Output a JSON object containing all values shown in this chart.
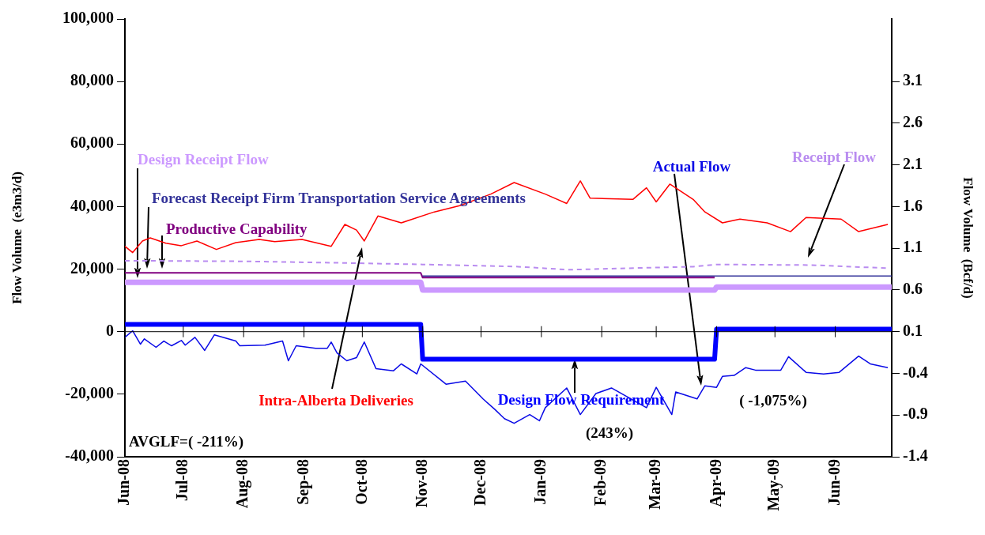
{
  "chart_data": {
    "type": "line",
    "xlabel": null,
    "ylabel": "Flow Volume  (e3m3/d)",
    "y2label": "Flow Volume  (Bcf/d)",
    "xlim": [
      "2008-06-01",
      "2009-06-30"
    ],
    "xticks": [
      {
        "value": "2008-06-01",
        "label": "Jun-08"
      },
      {
        "value": "2008-07-01",
        "label": "Jul-08"
      },
      {
        "value": "2008-08-01",
        "label": "Aug-08"
      },
      {
        "value": "2008-09-01",
        "label": "Sep-08"
      },
      {
        "value": "2008-10-01",
        "label": "Oct-08"
      },
      {
        "value": "2008-11-01",
        "label": "Nov-08"
      },
      {
        "value": "2008-12-01",
        "label": "Dec-08"
      },
      {
        "value": "2009-01-01",
        "label": "Jan-09"
      },
      {
        "value": "2009-02-01",
        "label": "Feb-09"
      },
      {
        "value": "2009-03-01",
        "label": "Mar-09"
      },
      {
        "value": "2009-04-01",
        "label": "Apr-09"
      },
      {
        "value": "2009-05-01",
        "label": "May-09"
      },
      {
        "value": "2009-06-01",
        "label": "Jun-09"
      }
    ],
    "ylim": [
      -40000,
      100000
    ],
    "yticks": [
      {
        "value": -40000,
        "label": "-40,000"
      },
      {
        "value": -20000,
        "label": "-20,000"
      },
      0,
      {
        "value": 20000,
        "label": "20,000"
      },
      {
        "value": 40000,
        "label": "40,000"
      },
      {
        "value": 60000,
        "label": "60,000"
      },
      {
        "value": 80000,
        "label": "80,000"
      },
      {
        "value": 100000,
        "label": "100,000"
      }
    ],
    "y2lim": [
      -1.4,
      3.85
    ],
    "y2ticks": [
      -1.4,
      -0.9,
      -0.4,
      0.1,
      0.6,
      1.1,
      1.6,
      2.1,
      2.6,
      3.1
    ],
    "grid": false,
    "legend": false,
    "marker": "none",
    "ref_lines": [
      {
        "axis": "y",
        "value": 0,
        "color": "#000000"
      }
    ],
    "annotations": [
      "AVGLF=( -211%)",
      "(243%)",
      "( -1,075%)"
    ],
    "series": [
      {
        "name": "Intra-Alberta Deliveries",
        "color": "#ff0000",
        "x": [
          "2008-06-01",
          "2008-06-05",
          "2008-06-10",
          "2008-06-14",
          "2008-06-22",
          "2008-06-30",
          "2008-07-08",
          "2008-07-18",
          "2008-07-28",
          "2008-08-09",
          "2008-08-17",
          "2008-08-31",
          "2008-09-15",
          "2008-09-22",
          "2008-09-28",
          "2008-10-02",
          "2008-10-09",
          "2008-10-21",
          "2008-11-07",
          "2008-11-20",
          "2008-12-06",
          "2008-12-18",
          "2009-01-03",
          "2009-01-14",
          "2009-01-21",
          "2009-01-26",
          "2009-02-17",
          "2009-02-24",
          "2009-03-01",
          "2009-03-08",
          "2009-03-20",
          "2009-03-26",
          "2009-04-04",
          "2009-04-13",
          "2009-04-27",
          "2009-05-09",
          "2009-05-17",
          "2009-06-04",
          "2009-06-13",
          "2009-06-28"
        ],
        "values": [
          27300,
          25300,
          29000,
          30000,
          28300,
          27500,
          29000,
          26300,
          28500,
          29500,
          28800,
          29500,
          27300,
          34300,
          32500,
          29000,
          37000,
          34800,
          38300,
          40300,
          44000,
          47700,
          44000,
          41000,
          48200,
          42700,
          42300,
          46000,
          41500,
          47200,
          42300,
          38300,
          34800,
          36000,
          34800,
          32000,
          36500,
          36000,
          32000,
          34300
        ]
      },
      {
        "name": "Actual Flow",
        "color": "#0a0ae6",
        "x": [
          "2008-06-01",
          "2008-06-05",
          "2008-06-09",
          "2008-06-11",
          "2008-06-17",
          "2008-06-21",
          "2008-06-25",
          "2008-06-30",
          "2008-07-02",
          "2008-07-07",
          "2008-07-12",
          "2008-07-17",
          "2008-07-28",
          "2008-07-30",
          "2008-08-12",
          "2008-08-21",
          "2008-08-24",
          "2008-08-28",
          "2008-09-07",
          "2008-09-13",
          "2008-09-15",
          "2008-09-18",
          "2008-09-23",
          "2008-09-28",
          "2008-10-02",
          "2008-10-08",
          "2008-10-17",
          "2008-10-21",
          "2008-10-29",
          "2008-10-31",
          "2008-11-13",
          "2008-11-23",
          "2008-12-02",
          "2008-12-08",
          "2008-12-13",
          "2008-12-18",
          "2008-12-26",
          "2008-12-31",
          "2009-01-03",
          "2009-01-14",
          "2009-01-21",
          "2009-01-29",
          "2009-02-06",
          "2009-02-24",
          "2009-03-01",
          "2009-03-09",
          "2009-03-11",
          "2009-03-22",
          "2009-03-26",
          "2009-04-01",
          "2009-04-04",
          "2009-04-10",
          "2009-04-16",
          "2009-04-21",
          "2009-05-04",
          "2009-05-08",
          "2009-05-17",
          "2009-05-26",
          "2009-06-03",
          "2009-06-13",
          "2009-06-19",
          "2009-06-28"
        ],
        "values": [
          -1800,
          300,
          -4000,
          -2300,
          -5000,
          -3000,
          -4500,
          -2800,
          -4300,
          -1800,
          -6000,
          -1000,
          -3000,
          -4500,
          -4300,
          -3000,
          -9300,
          -4500,
          -5300,
          -5300,
          -3300,
          -6800,
          -9300,
          -8300,
          -3300,
          -11800,
          -12500,
          -10300,
          -13500,
          -10300,
          -16800,
          -15800,
          -21500,
          -24800,
          -27800,
          -29300,
          -26500,
          -28500,
          -24300,
          -18000,
          -26500,
          -19800,
          -18000,
          -24300,
          -17800,
          -26500,
          -19300,
          -21500,
          -17300,
          -17800,
          -14300,
          -14000,
          -11500,
          -12300,
          -12300,
          -8000,
          -13000,
          -13500,
          -13000,
          -7800,
          -10300,
          -11500
        ]
      },
      {
        "name": "Receipt Flow",
        "color": "#b98cf0",
        "line_style": "dashed",
        "x": [
          "2008-06-01",
          "2008-08-01",
          "2008-09-20",
          "2008-11-01",
          "2008-12-20",
          "2009-01-15",
          "2009-02-15",
          "2009-03-20",
          "2009-04-01",
          "2009-05-20",
          "2009-06-28"
        ],
        "values": [
          22700,
          22500,
          22000,
          21500,
          20800,
          19800,
          20300,
          20800,
          21500,
          21300,
          20300
        ]
      },
      {
        "name": "Design Receipt Flow",
        "color": "#cc99ff",
        "x": [
          "2008-06-01",
          "2008-10-31",
          "2008-11-01",
          "2009-03-31",
          "2009-04-01",
          "2009-06-30"
        ],
        "values": [
          15800,
          15800,
          13300,
          13300,
          14300,
          14300
        ]
      },
      {
        "name": "Forecast Receipt Firm Transportation Service Agreements",
        "color": "#333399",
        "x": [
          "2008-11-01",
          "2009-06-30"
        ],
        "values": [
          17800,
          17800
        ]
      },
      {
        "name": "Productive Capability",
        "color": "#800080",
        "x": [
          "2008-06-01",
          "2008-10-31",
          "2008-11-01",
          "2009-03-31"
        ],
        "values": [
          18800,
          18800,
          17300,
          17300
        ]
      },
      {
        "name": "Design Flow Requirement",
        "color": "#0000ff",
        "x": [
          "2008-06-01",
          "2008-10-31",
          "2008-11-01",
          "2009-03-31",
          "2009-04-01",
          "2009-06-30"
        ],
        "values": [
          2300,
          2300,
          -8800,
          -8800,
          800,
          800
        ]
      }
    ]
  }
}
